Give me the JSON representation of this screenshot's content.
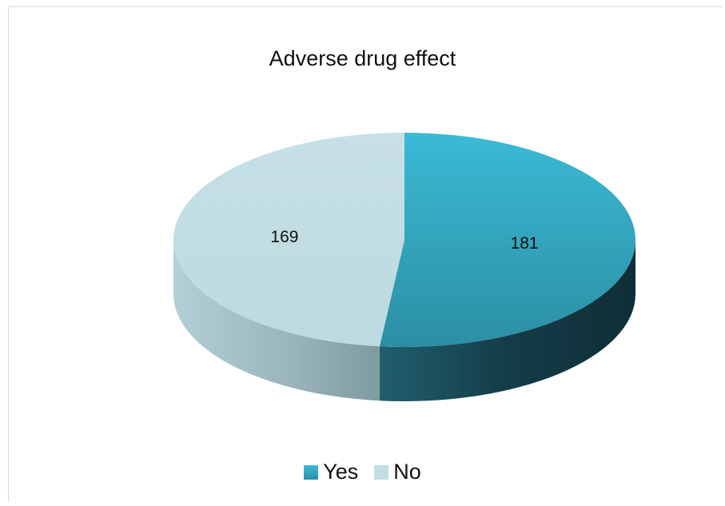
{
  "chart_data": {
    "type": "pie",
    "title": "Adverse drug effect",
    "categories": [
      "Yes",
      "No"
    ],
    "values": [
      181,
      169
    ],
    "colors": {
      "Yes": "#2e9fb9",
      "No": "#c2dde3"
    },
    "legend_position": "bottom",
    "style": "3d"
  }
}
